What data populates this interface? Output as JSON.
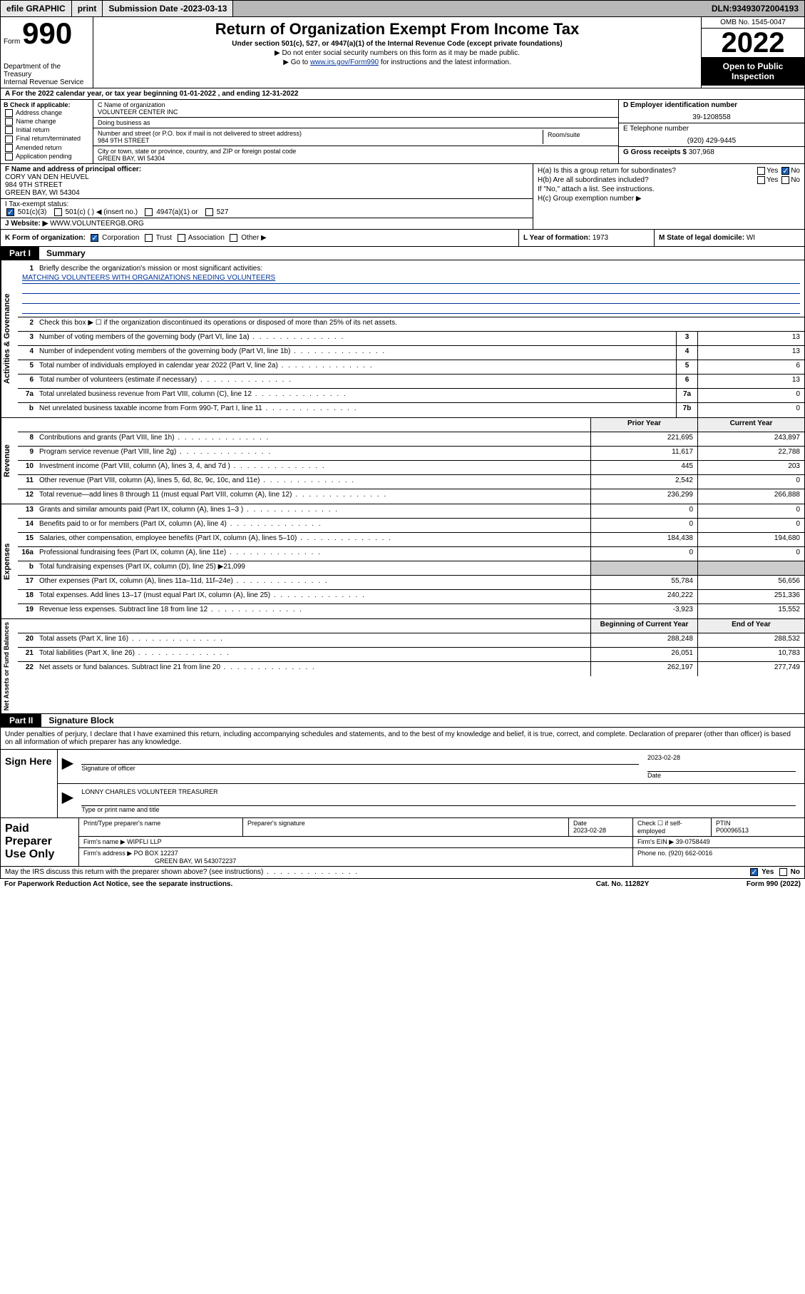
{
  "topbar": {
    "efile": "efile GRAPHIC",
    "print": "print",
    "subdate_label": "Submission Date - ",
    "subdate": "2023-03-13",
    "dln_label": "DLN: ",
    "dln": "93493072004193"
  },
  "header": {
    "form": "Form",
    "form_num": "990",
    "dept": "Department of the Treasury",
    "irs": "Internal Revenue Service",
    "title": "Return of Organization Exempt From Income Tax",
    "sub": "Under section 501(c), 527, or 4947(a)(1) of the Internal Revenue Code (except private foundations)",
    "l1": "▶ Do not enter social security numbers on this form as it may be made public.",
    "l2a": "▶ Go to ",
    "l2link": "www.irs.gov/Form990",
    "l2b": " for instructions and the latest information.",
    "omb": "OMB No. 1545-0047",
    "year": "2022",
    "otp": "Open to Public Inspection"
  },
  "rowA": {
    "prefix": "A For the 2022 calendar year, or tax year beginning ",
    "begin": "01-01-2022",
    "mid": "   , and ending ",
    "end": "12-31-2022"
  },
  "boxB": {
    "heading": "B Check if applicable:",
    "items": [
      "Address change",
      "Name change",
      "Initial return",
      "Final return/terminated",
      "Amended return",
      "Application pending"
    ]
  },
  "boxC": {
    "c_label": "C Name of organization",
    "org": "VOLUNTEER CENTER INC",
    "dba_label": "Doing business as",
    "dba": "",
    "street_label": "Number and street (or P.O. box if mail is not delivered to street address)",
    "suite_label": "Room/suite",
    "street": "984 9TH STREET",
    "city_label": "City or town, state or province, country, and ZIP or foreign postal code",
    "city": "GREEN BAY, WI  54304"
  },
  "boxD": {
    "d_label": "D Employer identification number",
    "ein": "39-1208558",
    "e_label": "E Telephone number",
    "phone": "(920) 429-9445",
    "g_label": "G Gross receipts $ ",
    "gross": "307,968"
  },
  "boxF": {
    "label": "F  Name and address of principal officer:",
    "name": "CORY VAN DEN HEUVEL",
    "addr1": "984 9TH STREET",
    "addr2": "GREEN BAY, WI  54304"
  },
  "boxI": {
    "label": "I    Tax-exempt status:",
    "c3": "501(c)(3)",
    "c": "501(c) (  ) ◀ (insert no.)",
    "a1": "4947(a)(1) or",
    "s527": "527"
  },
  "boxJ": {
    "label": "J    Website: ▶  ",
    "site": "WWW.VOLUNTEERGB.ORG"
  },
  "boxH": {
    "ha": "H(a)  Is this a group return for subordinates?",
    "hb": "H(b)  Are all subordinates included?",
    "hnote": "If \"No,\" attach a list. See instructions.",
    "hc": "H(c)  Group exemption number ▶",
    "yes": "Yes",
    "no": "No"
  },
  "rowK": {
    "k": "K Form of organization:",
    "corp": "Corporation",
    "trust": "Trust",
    "assoc": "Association",
    "other": "Other ▶",
    "l": "L Year of formation: ",
    "lval": "1973",
    "m": "M State of legal domicile: ",
    "mval": "WI"
  },
  "part1": {
    "label": "Part I",
    "title": "Summary"
  },
  "part2": {
    "label": "Part II",
    "title": "Signature Block"
  },
  "summary": {
    "tab1": "Activities & Governance",
    "tab2": "Revenue",
    "tab3": "Expenses",
    "tab4": "Net Assets or Fund Balances",
    "l1": "Briefly describe the organization's mission or most significant activities:",
    "mission": "MATCHING VOLUNTEERS WITH ORGANIZATIONS NEEDING VOLUNTEERS",
    "l2": "Check this box ▶ ☐  if the organization discontinued its operations or disposed of more than 25% of its net assets.",
    "rows_gov": [
      {
        "n": "3",
        "t": "Number of voting members of the governing body (Part VI, line 1a)",
        "c": "3",
        "v": "13"
      },
      {
        "n": "4",
        "t": "Number of independent voting members of the governing body (Part VI, line 1b)",
        "c": "4",
        "v": "13"
      },
      {
        "n": "5",
        "t": "Total number of individuals employed in calendar year 2022 (Part V, line 2a)",
        "c": "5",
        "v": "6"
      },
      {
        "n": "6",
        "t": "Total number of volunteers (estimate if necessary)",
        "c": "6",
        "v": "13"
      },
      {
        "n": "7a",
        "t": "Total unrelated business revenue from Part VIII, column (C), line 12",
        "c": "7a",
        "v": "0"
      },
      {
        "n": "b",
        "t": "Net unrelated business taxable income from Form 990-T, Part I, line 11",
        "c": "7b",
        "v": "0"
      }
    ],
    "hdr_prior": "Prior Year",
    "hdr_curr": "Current Year",
    "rows_rev": [
      {
        "n": "8",
        "t": "Contributions and grants (Part VIII, line 1h)",
        "p": "221,695",
        "c": "243,897"
      },
      {
        "n": "9",
        "t": "Program service revenue (Part VIII, line 2g)",
        "p": "11,617",
        "c": "22,788"
      },
      {
        "n": "10",
        "t": "Investment income (Part VIII, column (A), lines 3, 4, and 7d )",
        "p": "445",
        "c": "203"
      },
      {
        "n": "11",
        "t": "Other revenue (Part VIII, column (A), lines 5, 6d, 8c, 9c, 10c, and 11e)",
        "p": "2,542",
        "c": "0"
      },
      {
        "n": "12",
        "t": "Total revenue—add lines 8 through 11 (must equal Part VIII, column (A), line 12)",
        "p": "236,299",
        "c": "266,888"
      }
    ],
    "rows_exp": [
      {
        "n": "13",
        "t": "Grants and similar amounts paid (Part IX, column (A), lines 1–3 )",
        "p": "0",
        "c": "0"
      },
      {
        "n": "14",
        "t": "Benefits paid to or for members (Part IX, column (A), line 4)",
        "p": "0",
        "c": "0"
      },
      {
        "n": "15",
        "t": "Salaries, other compensation, employee benefits (Part IX, column (A), lines 5–10)",
        "p": "184,438",
        "c": "194,680"
      },
      {
        "n": "16a",
        "t": "Professional fundraising fees (Part IX, column (A), line 11e)",
        "p": "0",
        "c": "0"
      },
      {
        "n": "b",
        "t": "Total fundraising expenses (Part IX, column (D), line 25) ▶21,099",
        "p": "",
        "c": ""
      },
      {
        "n": "17",
        "t": "Other expenses (Part IX, column (A), lines 11a–11d, 11f–24e)",
        "p": "55,784",
        "c": "56,656"
      },
      {
        "n": "18",
        "t": "Total expenses. Add lines 13–17 (must equal Part IX, column (A), line 25)",
        "p": "240,222",
        "c": "251,336"
      },
      {
        "n": "19",
        "t": "Revenue less expenses. Subtract line 18 from line 12",
        "p": "-3,923",
        "c": "15,552"
      }
    ],
    "hdr_begin": "Beginning of Current Year",
    "hdr_end": "End of Year",
    "rows_net": [
      {
        "n": "20",
        "t": "Total assets (Part X, line 16)",
        "p": "288,248",
        "c": "288,532"
      },
      {
        "n": "21",
        "t": "Total liabilities (Part X, line 26)",
        "p": "26,051",
        "c": "10,783"
      },
      {
        "n": "22",
        "t": "Net assets or fund balances. Subtract line 21 from line 20",
        "p": "262,197",
        "c": "277,749"
      }
    ]
  },
  "sig": {
    "intro": "Under penalties of perjury, I declare that I have examined this return, including accompanying schedules and statements, and to the best of my knowledge and belief, it is true, correct, and complete. Declaration of preparer (other than officer) is based on all information of which preparer has any knowledge.",
    "sign_here": "Sign Here",
    "sig_officer": "Signature of officer",
    "date_label": "Date",
    "date": "2023-02-28",
    "name_title": "LONNY CHARLES  VOLUNTEER TREASURER",
    "name_title_label": "Type or print name and title"
  },
  "prep": {
    "label": "Paid Preparer Use Only",
    "h_name": "Print/Type preparer's name",
    "h_sig": "Preparer's signature",
    "h_date": "Date",
    "date": "2023-02-28",
    "check": "Check ☐ if self-employed",
    "ptin_label": "PTIN",
    "ptin": "P00096513",
    "firm_name_label": "Firm's name    ▶ ",
    "firm_name": "WIPFLI LLP",
    "firm_ein_label": "Firm's EIN ▶ ",
    "firm_ein": "39-0758449",
    "firm_addr_label": "Firm's address ▶ ",
    "firm_addr1": "PO BOX 12237",
    "firm_addr2": "GREEN BAY, WI  543072237",
    "phone_label": "Phone no. ",
    "phone": "(920) 662-0016"
  },
  "footer": {
    "discuss": "May the IRS discuss this return with the preparer shown above? (see instructions)",
    "yes": "Yes",
    "no": "No",
    "pra": "For Paperwork Reduction Act Notice, see the separate instructions.",
    "cat": "Cat. No. 11282Y",
    "form": "Form 990 (2022)"
  }
}
